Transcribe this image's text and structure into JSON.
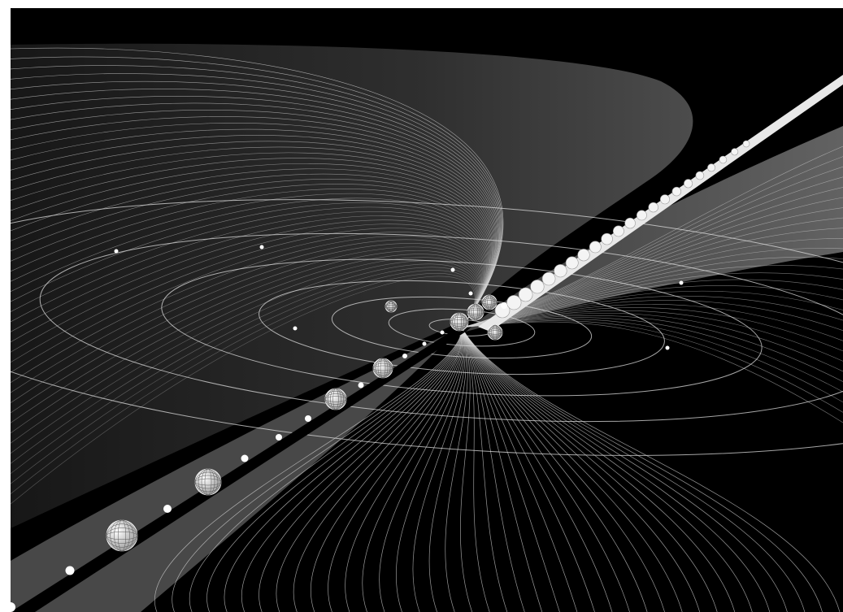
{
  "colors": {
    "background": "#000000",
    "page": "#ffffff",
    "line": "#d9d9d9",
    "fan": "#7f7f7f",
    "sphere": "#f2f2f2"
  },
  "scene": {
    "kind": "3d-orbit-field-visualization",
    "icons": [
      "orbit-ring",
      "wireframe-sphere",
      "point-marker",
      "spiral-arm"
    ]
  }
}
